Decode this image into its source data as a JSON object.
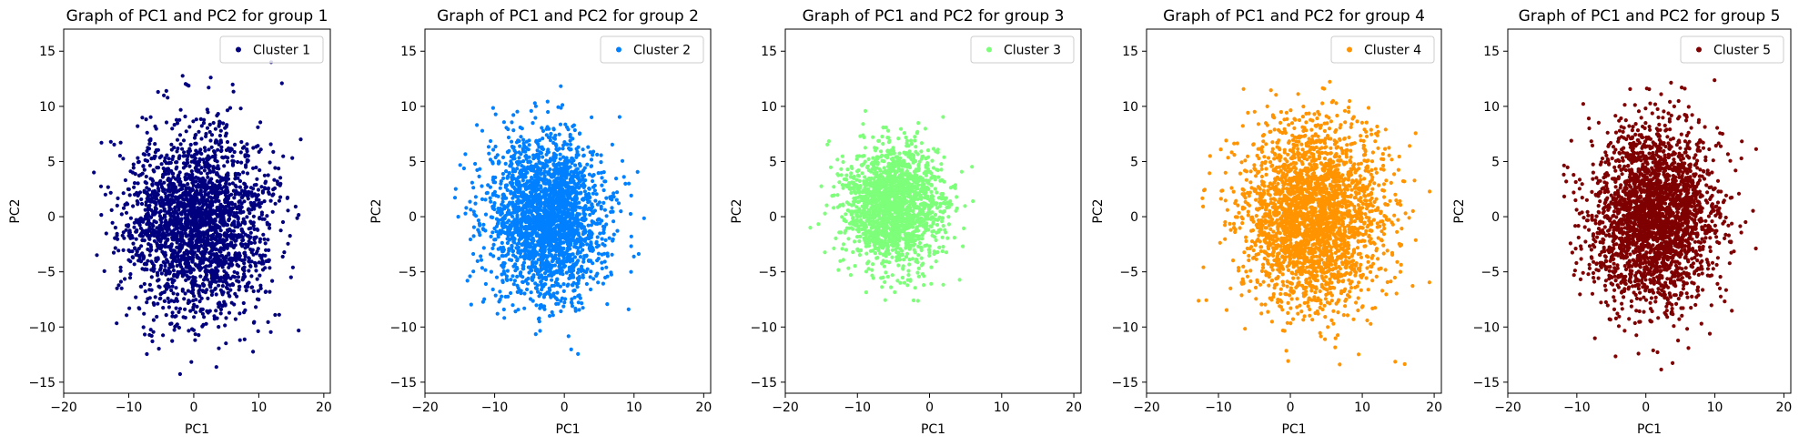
{
  "chart_data": [
    {
      "type": "scatter",
      "title": "Graph of PC1 and PC2 for group 1",
      "xlabel": "PC1",
      "ylabel": "PC2",
      "xlim": [
        -20,
        21
      ],
      "ylim": [
        -16,
        17
      ],
      "xticks": [
        -20,
        -10,
        0,
        10,
        20
      ],
      "yticks": [
        -15,
        -10,
        -5,
        0,
        5,
        10,
        15
      ],
      "xtick_labels": [
        "−20",
        "−10",
        "0",
        "10",
        "20"
      ],
      "ytick_labels": [
        "−15",
        "−10",
        "−5",
        "0",
        "5",
        "10",
        "15"
      ],
      "legend": "top-right",
      "grid": false,
      "series": [
        {
          "name": "Cluster 1",
          "color": "#00007f",
          "cloud": {
            "n": 2400,
            "x_center": 0.5,
            "x_std": 5.5,
            "y_center": -0.5,
            "y_std": 4.2,
            "x_range": [
              -17,
              17
            ],
            "y_range": [
              -14.5,
              15.5
            ],
            "seed": 11
          }
        }
      ]
    },
    {
      "type": "scatter",
      "title": "Graph of PC1 and PC2 for group 2",
      "xlabel": "PC1",
      "ylabel": "PC2",
      "xlim": [
        -20,
        21
      ],
      "ylim": [
        -16,
        17
      ],
      "xticks": [
        -20,
        -10,
        0,
        10,
        20
      ],
      "yticks": [
        -15,
        -10,
        -5,
        0,
        5,
        10,
        15
      ],
      "xtick_labels": [
        "−20",
        "−10",
        "0",
        "10",
        "20"
      ],
      "ytick_labels": [
        "−15",
        "−10",
        "−5",
        "0",
        "5",
        "10",
        "15"
      ],
      "legend": "top-right",
      "grid": false,
      "series": [
        {
          "name": "Cluster 2",
          "color": "#0080ff",
          "cloud": {
            "n": 2400,
            "x_center": -2.5,
            "x_std": 4.2,
            "y_center": 0.0,
            "y_std": 3.6,
            "x_range": [
              -16,
              15.5
            ],
            "y_range": [
              -13.5,
              13
            ],
            "seed": 22
          }
        }
      ]
    },
    {
      "type": "scatter",
      "title": "Graph of PC1 and PC2 for group 3",
      "xlabel": "PC1",
      "ylabel": "PC2",
      "xlim": [
        -20,
        21
      ],
      "ylim": [
        -16,
        17
      ],
      "xticks": [
        -20,
        -10,
        0,
        10,
        20
      ],
      "yticks": [
        -15,
        -10,
        -5,
        0,
        5,
        10,
        15
      ],
      "xtick_labels": [
        "−20",
        "−10",
        "0",
        "10",
        "20"
      ],
      "ytick_labels": [
        "−15",
        "−10",
        "−5",
        "0",
        "5",
        "10",
        "15"
      ],
      "legend": "top-right",
      "grid": false,
      "series": [
        {
          "name": "Cluster 3",
          "color": "#7dff7a",
          "cloud": {
            "n": 1800,
            "x_center": -5.0,
            "x_std": 3.4,
            "y_center": 1.0,
            "y_std": 2.7,
            "x_range": [
              -17,
              12
            ],
            "y_range": [
              -8.5,
              10
            ],
            "seed": 33
          }
        }
      ]
    },
    {
      "type": "scatter",
      "title": "Graph of PC1 and PC2 for group 4",
      "xlabel": "PC1",
      "ylabel": "PC2",
      "xlim": [
        -20,
        21
      ],
      "ylim": [
        -16,
        17
      ],
      "xticks": [
        -20,
        -10,
        0,
        10,
        20
      ],
      "yticks": [
        -15,
        -10,
        -5,
        0,
        5,
        10,
        15
      ],
      "xtick_labels": [
        "−20",
        "−10",
        "0",
        "10",
        "20"
      ],
      "ytick_labels": [
        "−15",
        "−10",
        "−5",
        "0",
        "5",
        "10",
        "15"
      ],
      "legend": "top-right",
      "grid": false,
      "series": [
        {
          "name": "Cluster 4",
          "color": "#ff9400",
          "cloud": {
            "n": 2600,
            "x_center": 3.0,
            "x_std": 5.0,
            "y_center": 0.0,
            "y_std": 4.2,
            "x_range": [
              -13,
              19.5
            ],
            "y_range": [
              -14,
              13
            ],
            "seed": 44
          }
        }
      ]
    },
    {
      "type": "scatter",
      "title": "Graph of PC1 and PC2 for group 5",
      "xlabel": "PC1",
      "ylabel": "PC2",
      "xlim": [
        -20,
        21
      ],
      "ylim": [
        -16,
        17
      ],
      "xticks": [
        -20,
        -10,
        0,
        10,
        20
      ],
      "yticks": [
        -15,
        -10,
        -5,
        0,
        5,
        10,
        15
      ],
      "xtick_labels": [
        "−20",
        "−10",
        "0",
        "10",
        "20"
      ],
      "ytick_labels": [
        "−15",
        "−10",
        "−5",
        "0",
        "5",
        "10",
        "15"
      ],
      "legend": "top-right",
      "grid": false,
      "series": [
        {
          "name": "Cluster 5",
          "color": "#7f0000",
          "cloud": {
            "n": 2600,
            "x_center": 1.0,
            "x_std": 4.6,
            "y_center": 0.0,
            "y_std": 3.9,
            "x_range": [
              -12.5,
              16
            ],
            "y_range": [
              -14,
              13.5
            ],
            "seed": 55
          }
        }
      ]
    }
  ]
}
